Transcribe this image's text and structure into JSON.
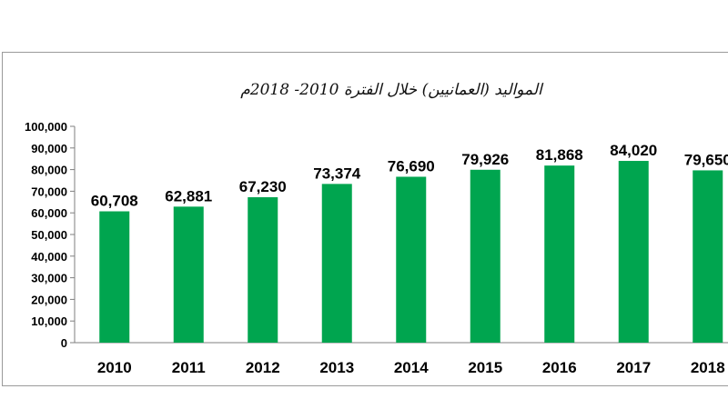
{
  "chart_data": {
    "type": "bar",
    "title": "المواليد (العمانيين) خلال الفترة 2010- 2018م",
    "xlabel": "",
    "ylabel": "",
    "categories": [
      "2010",
      "2011",
      "2012",
      "2013",
      "2014",
      "2015",
      "2016",
      "2017",
      "2018"
    ],
    "values": [
      60708,
      62881,
      67230,
      73374,
      76690,
      79926,
      81868,
      84020,
      79650
    ],
    "value_labels": [
      "60,708",
      "62,881",
      "67,230",
      "73,374",
      "76,690",
      "79,926",
      "81,868",
      "84,020",
      "79,650"
    ],
    "ylim": [
      0,
      100000
    ],
    "yticks": [
      0,
      10000,
      20000,
      30000,
      40000,
      50000,
      60000,
      70000,
      80000,
      90000,
      100000
    ],
    "ytick_labels": [
      "0",
      "10,000",
      "20,000",
      "30,000",
      "40,000",
      "50,000",
      "60,000",
      "70,000",
      "80,000",
      "90,000",
      "100,000"
    ],
    "grid": false,
    "legend": "none",
    "bar_color": "#00A54F"
  }
}
